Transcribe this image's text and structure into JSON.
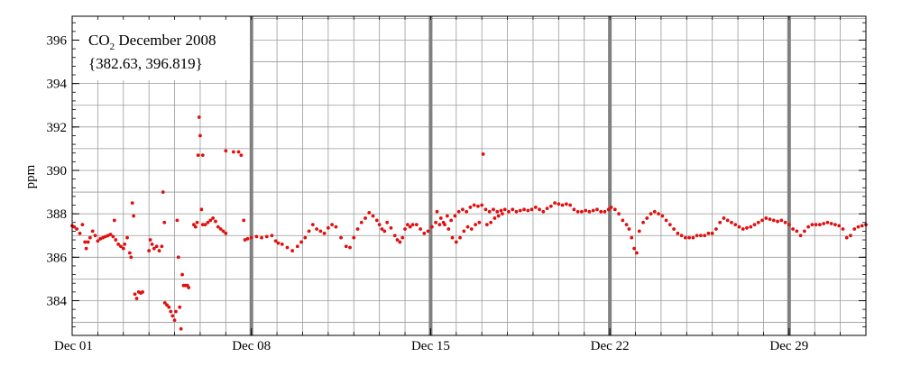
{
  "chart_data": {
    "type": "scatter",
    "title_main": "CO",
    "title_sub": "2",
    "title_rest": " December 2008",
    "range_text": "{382.63, 396.819}",
    "ylabel": "ppm",
    "xlabel": "",
    "xlim": [
      1,
      32
    ],
    "ylim": [
      382.4,
      397.1
    ],
    "x_ticks": [
      {
        "day": 1,
        "label": "Dec 01"
      },
      {
        "day": 8,
        "label": "Dec 08"
      },
      {
        "day": 15,
        "label": "Dec 15"
      },
      {
        "day": 22,
        "label": "Dec 22"
      },
      {
        "day": 29,
        "label": "Dec 29"
      }
    ],
    "y_ticks": [
      384,
      386,
      388,
      390,
      392,
      394,
      396
    ],
    "week_markers": [
      8,
      15,
      22,
      29
    ],
    "grid": true,
    "marker_color": "#e01010",
    "grid_color": "#9a9a9a",
    "week_marker_color": "#808080",
    "series": [
      {
        "points": [
          [
            1.0,
            387.45
          ],
          [
            1.08,
            387.4
          ],
          [
            1.18,
            387.3
          ],
          [
            1.3,
            387.1
          ],
          [
            1.4,
            387.5
          ],
          [
            1.5,
            386.7
          ],
          [
            1.55,
            386.4
          ],
          [
            1.62,
            386.7
          ],
          [
            1.7,
            386.9
          ],
          [
            1.8,
            387.2
          ],
          [
            1.9,
            387.0
          ],
          [
            2.0,
            386.75
          ],
          [
            2.1,
            386.85
          ],
          [
            2.2,
            386.9
          ],
          [
            2.3,
            386.95
          ],
          [
            2.4,
            387.0
          ],
          [
            2.5,
            387.05
          ],
          [
            2.6,
            386.95
          ],
          [
            2.65,
            387.7
          ],
          [
            2.7,
            386.8
          ],
          [
            2.8,
            386.6
          ],
          [
            2.9,
            386.5
          ],
          [
            3.0,
            386.4
          ],
          [
            3.05,
            386.6
          ],
          [
            3.15,
            386.9
          ],
          [
            3.25,
            386.2
          ],
          [
            3.3,
            386.0
          ],
          [
            3.35,
            388.5
          ],
          [
            3.4,
            387.9
          ],
          [
            3.45,
            384.3
          ],
          [
            3.52,
            384.1
          ],
          [
            3.6,
            384.4
          ],
          [
            3.68,
            384.35
          ],
          [
            3.75,
            384.4
          ],
          [
            4.0,
            386.3
          ],
          [
            4.05,
            386.8
          ],
          [
            4.12,
            386.6
          ],
          [
            4.2,
            386.4
          ],
          [
            4.3,
            386.5
          ],
          [
            4.4,
            386.3
          ],
          [
            4.5,
            386.5
          ],
          [
            4.55,
            389.0
          ],
          [
            4.6,
            387.6
          ],
          [
            4.62,
            383.9
          ],
          [
            4.7,
            383.8
          ],
          [
            4.78,
            383.7
          ],
          [
            4.85,
            383.5
          ],
          [
            4.92,
            383.3
          ],
          [
            5.0,
            383.1
          ],
          [
            5.05,
            383.5
          ],
          [
            5.1,
            387.7
          ],
          [
            5.15,
            386.0
          ],
          [
            5.2,
            383.7
          ],
          [
            5.25,
            382.7
          ],
          [
            5.3,
            385.2
          ],
          [
            5.35,
            384.7
          ],
          [
            5.42,
            384.7
          ],
          [
            5.5,
            384.7
          ],
          [
            5.55,
            384.6
          ],
          [
            5.75,
            387.5
          ],
          [
            5.82,
            387.4
          ],
          [
            5.88,
            387.6
          ],
          [
            5.92,
            390.7
          ],
          [
            5.96,
            392.45
          ],
          [
            6.0,
            391.6
          ],
          [
            6.05,
            388.2
          ],
          [
            6.1,
            387.5
          ],
          [
            6.2,
            387.5
          ],
          [
            6.3,
            387.6
          ],
          [
            6.4,
            387.7
          ],
          [
            6.5,
            387.8
          ],
          [
            6.6,
            387.65
          ],
          [
            6.7,
            387.4
          ],
          [
            6.8,
            387.3
          ],
          [
            6.9,
            387.2
          ],
          [
            7.0,
            387.1
          ],
          [
            6.1,
            390.7
          ],
          [
            7.0,
            390.9
          ],
          [
            7.3,
            390.85
          ],
          [
            7.5,
            390.85
          ],
          [
            7.6,
            390.7
          ],
          [
            7.7,
            387.7
          ],
          [
            7.75,
            386.8
          ],
          [
            7.85,
            386.85
          ],
          [
            8.0,
            386.9
          ],
          [
            8.2,
            386.95
          ],
          [
            8.4,
            386.9
          ],
          [
            8.6,
            386.95
          ],
          [
            8.8,
            387.0
          ],
          [
            8.95,
            386.75
          ],
          [
            9.05,
            386.65
          ],
          [
            9.2,
            386.6
          ],
          [
            9.4,
            386.45
          ],
          [
            9.6,
            386.3
          ],
          [
            9.8,
            386.5
          ],
          [
            9.95,
            386.7
          ],
          [
            10.1,
            386.9
          ],
          [
            10.25,
            387.2
          ],
          [
            10.4,
            387.5
          ],
          [
            10.55,
            387.3
          ],
          [
            10.7,
            387.2
          ],
          [
            10.85,
            387.1
          ],
          [
            11.0,
            387.35
          ],
          [
            11.15,
            387.5
          ],
          [
            11.3,
            387.4
          ],
          [
            11.5,
            386.9
          ],
          [
            11.7,
            386.5
          ],
          [
            11.85,
            386.45
          ],
          [
            12.0,
            386.9
          ],
          [
            12.15,
            387.3
          ],
          [
            12.3,
            387.6
          ],
          [
            12.45,
            387.8
          ],
          [
            12.6,
            388.05
          ],
          [
            12.75,
            387.9
          ],
          [
            12.9,
            387.7
          ],
          [
            13.0,
            387.5
          ],
          [
            13.1,
            387.3
          ],
          [
            13.2,
            387.2
          ],
          [
            13.3,
            387.6
          ],
          [
            13.45,
            387.35
          ],
          [
            13.6,
            387.0
          ],
          [
            13.7,
            386.8
          ],
          [
            13.8,
            386.7
          ],
          [
            13.9,
            386.9
          ],
          [
            14.0,
            387.3
          ],
          [
            14.1,
            387.5
          ],
          [
            14.2,
            387.4
          ],
          [
            14.3,
            387.5
          ],
          [
            14.45,
            387.5
          ],
          [
            14.6,
            387.3
          ],
          [
            14.75,
            387.1
          ],
          [
            14.9,
            387.2
          ],
          [
            15.05,
            387.4
          ],
          [
            15.2,
            387.6
          ],
          [
            15.35,
            387.5
          ],
          [
            15.5,
            387.6
          ],
          [
            15.65,
            387.9
          ],
          [
            15.8,
            387.7
          ],
          [
            15.95,
            387.9
          ],
          [
            16.1,
            388.1
          ],
          [
            16.25,
            388.2
          ],
          [
            16.4,
            388.1
          ],
          [
            16.55,
            388.3
          ],
          [
            16.7,
            388.4
          ],
          [
            16.85,
            388.35
          ],
          [
            17.0,
            388.4
          ],
          [
            17.15,
            388.2
          ],
          [
            17.3,
            388.1
          ],
          [
            17.45,
            388.2
          ],
          [
            17.6,
            388.1
          ],
          [
            17.75,
            388.15
          ],
          [
            17.9,
            388.2
          ],
          [
            18.05,
            388.1
          ],
          [
            18.2,
            388.2
          ],
          [
            18.35,
            388.1
          ],
          [
            18.5,
            388.15
          ],
          [
            18.65,
            388.2
          ],
          [
            18.8,
            388.15
          ],
          [
            18.95,
            388.2
          ],
          [
            19.1,
            388.3
          ],
          [
            19.25,
            388.2
          ],
          [
            19.4,
            388.1
          ],
          [
            19.55,
            388.25
          ],
          [
            19.7,
            388.35
          ],
          [
            19.85,
            388.5
          ],
          [
            20.0,
            388.45
          ],
          [
            20.15,
            388.4
          ],
          [
            20.3,
            388.45
          ],
          [
            20.45,
            388.4
          ],
          [
            20.6,
            388.2
          ],
          [
            20.75,
            388.1
          ],
          [
            20.9,
            388.1
          ],
          [
            21.05,
            388.15
          ],
          [
            21.2,
            388.1
          ],
          [
            21.35,
            388.15
          ],
          [
            21.5,
            388.2
          ],
          [
            21.65,
            388.1
          ],
          [
            21.8,
            388.1
          ],
          [
            21.95,
            388.2
          ],
          [
            22.05,
            388.3
          ],
          [
            22.2,
            388.2
          ],
          [
            22.35,
            388.0
          ],
          [
            22.5,
            387.7
          ],
          [
            22.65,
            387.5
          ],
          [
            22.75,
            387.3
          ],
          [
            22.85,
            386.9
          ],
          [
            22.95,
            386.4
          ],
          [
            23.05,
            386.2
          ],
          [
            23.15,
            387.2
          ],
          [
            23.3,
            387.6
          ],
          [
            23.45,
            387.8
          ],
          [
            23.6,
            388.0
          ],
          [
            23.75,
            388.1
          ],
          [
            23.9,
            388.0
          ],
          [
            24.05,
            387.9
          ],
          [
            24.2,
            387.7
          ],
          [
            24.35,
            387.5
          ],
          [
            24.5,
            387.3
          ],
          [
            24.65,
            387.1
          ],
          [
            24.8,
            387.0
          ],
          [
            24.95,
            386.9
          ],
          [
            25.1,
            386.9
          ],
          [
            25.25,
            386.9
          ],
          [
            25.4,
            387.0
          ],
          [
            25.55,
            387.0
          ],
          [
            25.7,
            387.0
          ],
          [
            25.85,
            387.1
          ],
          [
            26.0,
            387.1
          ],
          [
            26.15,
            387.3
          ],
          [
            26.3,
            387.6
          ],
          [
            26.45,
            387.8
          ],
          [
            26.6,
            387.7
          ],
          [
            26.75,
            387.6
          ],
          [
            26.9,
            387.5
          ],
          [
            27.05,
            387.4
          ],
          [
            27.2,
            387.3
          ],
          [
            27.35,
            387.35
          ],
          [
            27.5,
            387.4
          ],
          [
            27.65,
            387.5
          ],
          [
            27.8,
            387.6
          ],
          [
            27.95,
            387.7
          ],
          [
            28.1,
            387.8
          ],
          [
            28.25,
            387.75
          ],
          [
            28.4,
            387.7
          ],
          [
            28.55,
            387.65
          ],
          [
            28.7,
            387.7
          ],
          [
            28.85,
            387.6
          ],
          [
            29.0,
            387.5
          ],
          [
            29.15,
            387.3
          ],
          [
            29.3,
            387.2
          ],
          [
            29.45,
            387.0
          ],
          [
            29.6,
            387.2
          ],
          [
            29.75,
            387.4
          ],
          [
            29.9,
            387.5
          ],
          [
            30.05,
            387.5
          ],
          [
            30.2,
            387.5
          ],
          [
            30.35,
            387.55
          ],
          [
            30.5,
            387.6
          ],
          [
            30.65,
            387.55
          ],
          [
            30.8,
            387.5
          ],
          [
            30.95,
            387.45
          ],
          [
            31.1,
            387.3
          ],
          [
            31.25,
            386.9
          ],
          [
            31.4,
            387.0
          ],
          [
            31.55,
            387.3
          ],
          [
            31.7,
            387.4
          ],
          [
            31.85,
            387.45
          ],
          [
            32.0,
            387.5
          ],
          [
            15.25,
            388.1
          ],
          [
            15.4,
            387.8
          ],
          [
            15.55,
            387.5
          ],
          [
            15.7,
            387.3
          ],
          [
            15.85,
            386.9
          ],
          [
            16.0,
            386.7
          ],
          [
            16.15,
            386.9
          ],
          [
            16.3,
            387.2
          ],
          [
            16.45,
            387.4
          ],
          [
            16.6,
            387.3
          ],
          [
            16.75,
            387.5
          ],
          [
            16.9,
            387.6
          ],
          [
            17.05,
            390.75
          ],
          [
            17.2,
            387.5
          ],
          [
            17.35,
            387.6
          ],
          [
            17.5,
            387.8
          ],
          [
            17.65,
            387.9
          ],
          [
            17.8,
            388.0
          ]
        ]
      }
    ]
  }
}
